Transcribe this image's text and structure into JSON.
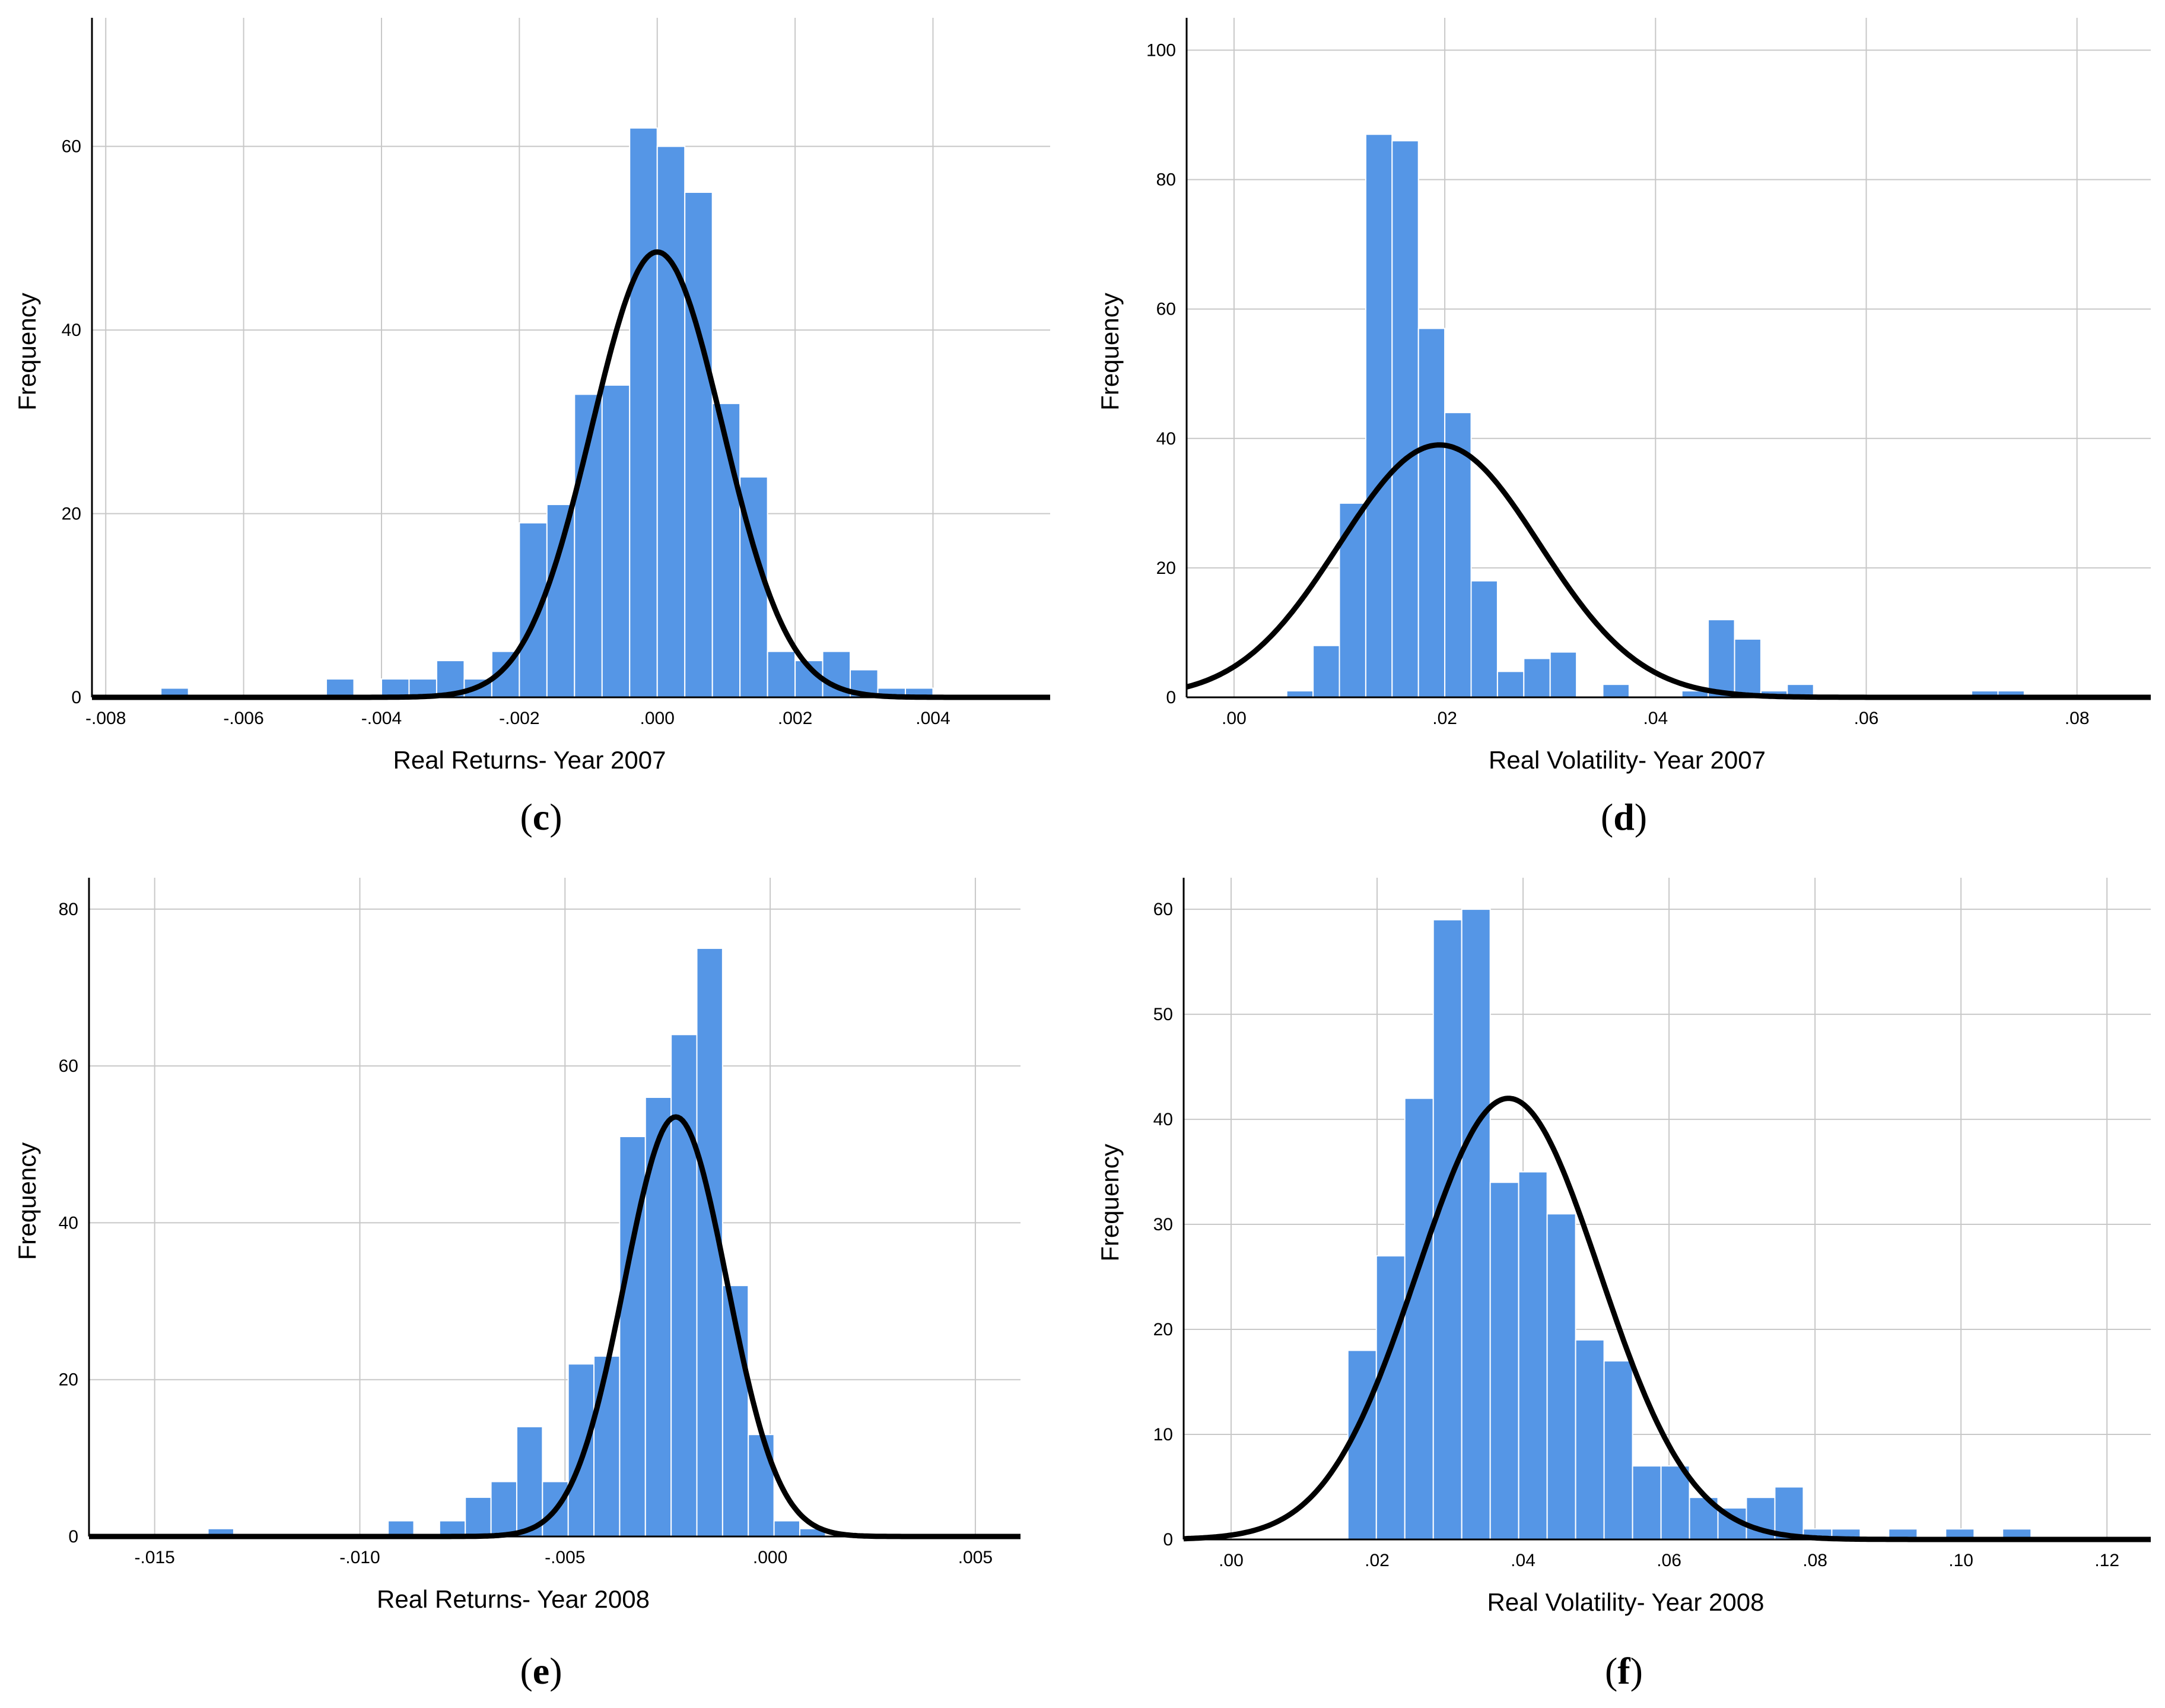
{
  "panels": [
    {
      "id": "c",
      "label_letter": "c"
    },
    {
      "id": "d",
      "label_letter": "d"
    },
    {
      "id": "e",
      "label_letter": "e"
    },
    {
      "id": "f",
      "label_letter": "f"
    }
  ],
  "colors": {
    "bar": "#5596e6",
    "bar_edge": "#ffffff",
    "grid": "#c8c8c8",
    "curve": "#000000",
    "axis": "#000000"
  },
  "chart_data": [
    {
      "id": "c",
      "type": "bar",
      "title": "",
      "xlabel": "Real Returns- Year 2007",
      "ylabel": "Frequency",
      "xlim": [
        -0.0082,
        0.0057
      ],
      "ylim": [
        0,
        74
      ],
      "xticks": [
        -0.008,
        -0.006,
        -0.004,
        -0.002,
        0.0,
        0.002,
        0.004
      ],
      "xtick_labels": [
        "-.008",
        "-.006",
        "-.004",
        "-.002",
        ".000",
        ".002",
        ".004"
      ],
      "yticks": [
        0,
        20,
        40,
        60
      ],
      "ytick_labels": [
        "0",
        "20",
        "40",
        "60"
      ],
      "grid": true,
      "bin_start": -0.0072,
      "bin_width": 0.0004,
      "values": [
        1,
        0,
        0,
        0,
        0,
        0,
        2,
        0,
        2,
        2,
        4,
        2,
        5,
        19,
        21,
        33,
        34,
        62,
        60,
        55,
        32,
        24,
        5,
        4,
        5,
        3,
        1,
        1
      ],
      "normal_curve": {
        "mean": 0.0,
        "sd": 0.00095,
        "peak": 48.5
      }
    },
    {
      "id": "d",
      "type": "bar",
      "title": "",
      "xlabel": "Real Volatility- Year 2007",
      "ylabel": "Frequency",
      "xlim": [
        -0.0045,
        0.087
      ],
      "ylim": [
        0,
        105
      ],
      "xticks": [
        0.0,
        0.02,
        0.04,
        0.06,
        0.08
      ],
      "xtick_labels": [
        ".00",
        ".02",
        ".04",
        ".06",
        ".08"
      ],
      "yticks": [
        0,
        20,
        40,
        60,
        80,
        100
      ],
      "ytick_labels": [
        "0",
        "20",
        "40",
        "60",
        "80",
        "100"
      ],
      "grid": true,
      "bin_start": 0.005,
      "bin_width": 0.0025,
      "values": [
        1,
        8,
        30,
        87,
        86,
        57,
        44,
        18,
        4,
        6,
        7,
        0,
        2,
        0,
        0,
        1,
        12,
        9,
        1,
        2,
        0,
        0,
        0,
        0,
        0,
        0,
        1,
        1
      ],
      "normal_curve": {
        "mean": 0.0195,
        "sd": 0.0095,
        "peak": 39
      }
    },
    {
      "id": "e",
      "type": "bar",
      "title": "",
      "xlabel": "Real Returns- Year 2008",
      "ylabel": "Frequency",
      "xlim": [
        -0.0166,
        0.0061
      ],
      "ylim": [
        0,
        84
      ],
      "xticks": [
        -0.015,
        -0.01,
        -0.005,
        0.0,
        0.005
      ],
      "xtick_labels": [
        "-.015",
        "-.010",
        "-.005",
        ".000",
        ".005"
      ],
      "yticks": [
        0,
        20,
        40,
        60,
        80
      ],
      "ytick_labels": [
        "0",
        "20",
        "40",
        "60",
        "80"
      ],
      "grid": true,
      "bin_start": -0.0137,
      "bin_width": 0.000627,
      "values": [
        1,
        0,
        0,
        0,
        0,
        0,
        0,
        2,
        0,
        2,
        5,
        7,
        14,
        7,
        22,
        23,
        51,
        56,
        64,
        75,
        32,
        13,
        2,
        1
      ],
      "normal_curve": {
        "mean": -0.0023,
        "sd": 0.00125,
        "peak": 53.5
      }
    },
    {
      "id": "f",
      "type": "bar",
      "title": "",
      "xlabel": "Real Volatility- Year 2008",
      "ylabel": "Frequency",
      "xlim": [
        -0.0065,
        0.126
      ],
      "ylim": [
        0,
        63
      ],
      "xticks": [
        0.0,
        0.02,
        0.04,
        0.06,
        0.08,
        0.1,
        0.12
      ],
      "xtick_labels": [
        ".00",
        ".02",
        ".04",
        ".06",
        ".08",
        ".10",
        ".12"
      ],
      "yticks": [
        0,
        10,
        20,
        30,
        40,
        50,
        60
      ],
      "ytick_labels": [
        "0",
        "10",
        "20",
        "30",
        "40",
        "50",
        "60"
      ],
      "grid": true,
      "bin_start": 0.016,
      "bin_width": 0.0039,
      "values": [
        18,
        27,
        42,
        59,
        60,
        34,
        35,
        31,
        19,
        17,
        7,
        7,
        4,
        3,
        4,
        5,
        1,
        1,
        0,
        1,
        0,
        1,
        0,
        1
      ],
      "normal_curve": {
        "mean": 0.038,
        "sd": 0.0125,
        "peak": 42
      }
    }
  ]
}
